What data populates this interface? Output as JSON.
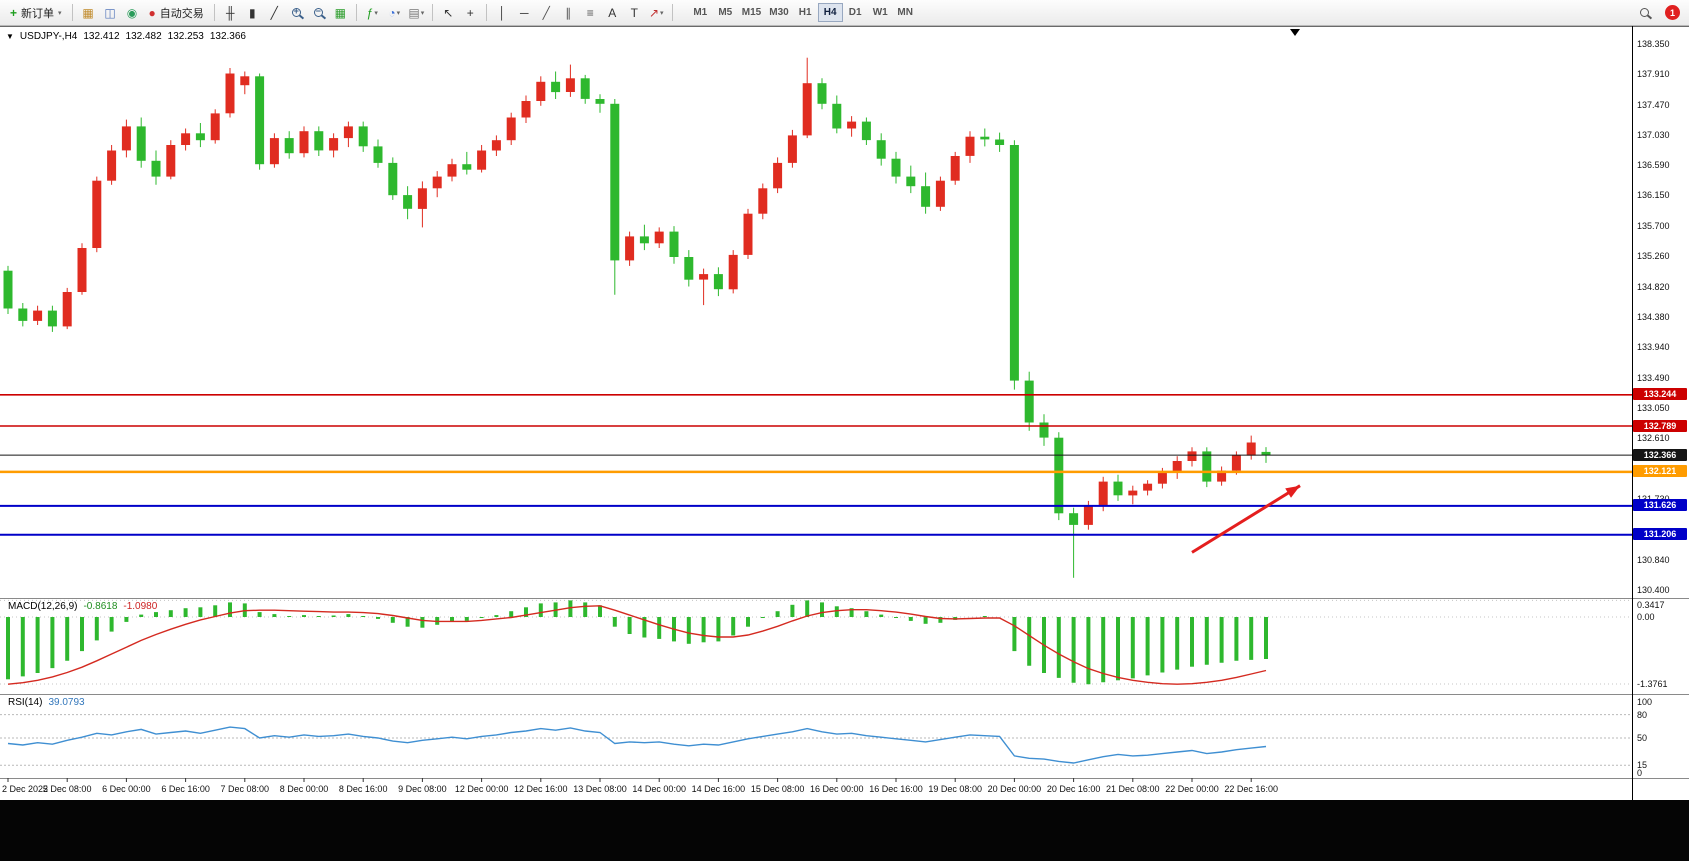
{
  "toolbar": {
    "new_order_label": "新订单",
    "auto_trading_label": "自动交易",
    "timeframes": [
      "M1",
      "M5",
      "M15",
      "M30",
      "H1",
      "H4",
      "D1",
      "W1",
      "MN"
    ],
    "active_timeframe": "H4",
    "notification_count": "1",
    "items": [
      {
        "type": "button",
        "name": "new-order-button",
        "glyph": "+",
        "color": "#1f9e1f",
        "label": "新订单",
        "caret": true
      },
      {
        "type": "sep"
      },
      {
        "type": "icon",
        "name": "new-chart-icon",
        "glyph": "▦",
        "color": "#c08a2a",
        "caret": false
      },
      {
        "type": "icon",
        "name": "profiles-icon",
        "glyph": "◫",
        "color": "#5577bb",
        "caret": false
      },
      {
        "type": "icon",
        "name": "market-watch-icon",
        "glyph": "◉",
        "color": "#2a9c5a",
        "caret": false
      },
      {
        "type": "button",
        "name": "auto-trading-button",
        "glyph": "●",
        "color": "#d03030",
        "label": "自动交易",
        "caret": false
      },
      {
        "type": "sep"
      },
      {
        "type": "icon",
        "name": "ohlc-bars-icon",
        "glyph": "╫",
        "color": "#333",
        "caret": false
      },
      {
        "type": "icon",
        "name": "candlestick-chart-icon",
        "glyph": "▮",
        "color": "#333",
        "caret": false
      },
      {
        "type": "icon",
        "name": "line-chart-icon",
        "glyph": "╱",
        "color": "#333",
        "caret": false
      },
      {
        "type": "zoom",
        "name": "zoom-in-icon",
        "sign": "+"
      },
      {
        "type": "zoom",
        "name": "zoom-out-icon",
        "sign": "−"
      },
      {
        "type": "icon",
        "name": "tile-windows-icon",
        "glyph": "▦",
        "color": "#2a9c2a",
        "caret": false
      },
      {
        "type": "sep"
      },
      {
        "type": "icon",
        "name": "indicators-icon",
        "glyph": "ƒ",
        "color": "#1f9e1f",
        "caret": true
      },
      {
        "type": "icon",
        "name": "periods-icon",
        "glyph": "◔",
        "color": "#3a6fd8",
        "caret": true
      },
      {
        "type": "icon",
        "name": "templates-icon",
        "glyph": "▤",
        "color": "#777",
        "caret": true
      },
      {
        "type": "sep"
      },
      {
        "type": "icon",
        "name": "cursor-icon",
        "glyph": "↖",
        "color": "#333",
        "caret": false
      },
      {
        "type": "icon",
        "name": "crosshair-icon",
        "glyph": "+",
        "color": "#333",
        "caret": false
      },
      {
        "type": "sep"
      },
      {
        "type": "icon",
        "name": "vertical-line-icon",
        "glyph": "│",
        "color": "#333",
        "caret": false
      },
      {
        "type": "icon",
        "name": "horizontal-line-icon",
        "glyph": "─",
        "color": "#333",
        "caret": false
      },
      {
        "type": "icon",
        "name": "trendline-icon",
        "glyph": "╱",
        "color": "#555",
        "caret": false
      },
      {
        "type": "icon",
        "name": "channel-icon",
        "glyph": "∥",
        "color": "#555",
        "caret": false
      },
      {
        "type": "icon",
        "name": "fibonacci-icon",
        "glyph": "≡",
        "color": "#555",
        "caret": false
      },
      {
        "type": "icon",
        "name": "text-icon",
        "glyph": "A",
        "color": "#333",
        "caret": false
      },
      {
        "type": "icon",
        "name": "text-label-icon",
        "glyph": "T",
        "color": "#333",
        "caret": false
      },
      {
        "type": "icon",
        "name": "arrows-icon",
        "glyph": "↗",
        "color": "#c03030",
        "caret": true
      },
      {
        "type": "sep"
      }
    ]
  },
  "chart": {
    "collapse_glyph": "▼",
    "symbol": "USDJPY-,H4",
    "open": "132.412",
    "high": "132.482",
    "low": "132.253",
    "close": "132.366"
  },
  "price_axis": {
    "labels": [
      "138.350",
      "137.910",
      "137.470",
      "137.030",
      "136.590",
      "136.150",
      "135.700",
      "135.260",
      "134.820",
      "134.380",
      "133.940",
      "133.490",
      "133.050",
      "132.610",
      "131.730",
      "130.840",
      "130.400"
    ]
  },
  "macd": {
    "title": "MACD(12,26,9)",
    "value_main": "-0.8618",
    "value_signal": "-1.0980",
    "axis_labels": [
      "0.3417",
      "0.00",
      "-1.3761"
    ]
  },
  "rsi": {
    "title": "RSI(14)",
    "value": "39.0793",
    "axis_labels": [
      "100",
      "80",
      "50",
      "15",
      "0"
    ]
  },
  "chart_data": {
    "type": "candlestick",
    "symbol": "USDJPY-",
    "timeframe": "H4",
    "style": {
      "bull_color": "#e02c20",
      "bear_color": "#2eb82e",
      "background": "#ffffff"
    },
    "candles": [
      [
        135.05,
        135.12,
        134.42,
        134.5
      ],
      [
        134.5,
        134.58,
        134.24,
        134.32
      ],
      [
        134.32,
        134.54,
        134.26,
        134.47
      ],
      [
        134.47,
        134.54,
        134.16,
        134.24
      ],
      [
        134.24,
        134.8,
        134.2,
        134.74
      ],
      [
        134.74,
        135.45,
        134.7,
        135.38
      ],
      [
        135.38,
        136.42,
        135.32,
        136.36
      ],
      [
        136.36,
        136.88,
        136.3,
        136.8
      ],
      [
        136.8,
        137.25,
        136.7,
        137.15
      ],
      [
        137.15,
        137.28,
        136.55,
        136.65
      ],
      [
        136.65,
        136.8,
        136.3,
        136.42
      ],
      [
        136.42,
        136.95,
        136.38,
        136.88
      ],
      [
        136.88,
        137.12,
        136.8,
        137.05
      ],
      [
        137.05,
        137.2,
        136.85,
        136.95
      ],
      [
        136.95,
        137.4,
        136.9,
        137.34
      ],
      [
        137.34,
        138.0,
        137.28,
        137.92
      ],
      [
        137.75,
        137.95,
        137.62,
        137.88
      ],
      [
        137.88,
        137.92,
        136.52,
        136.6
      ],
      [
        136.6,
        137.05,
        136.55,
        136.98
      ],
      [
        136.98,
        137.08,
        136.68,
        136.76
      ],
      [
        136.76,
        137.15,
        136.7,
        137.08
      ],
      [
        137.08,
        137.15,
        136.72,
        136.8
      ],
      [
        136.8,
        137.05,
        136.7,
        136.98
      ],
      [
        136.98,
        137.22,
        136.85,
        137.15
      ],
      [
        137.15,
        137.22,
        136.78,
        136.86
      ],
      [
        136.86,
        136.96,
        136.55,
        136.62
      ],
      [
        136.62,
        136.7,
        136.08,
        136.15
      ],
      [
        136.15,
        136.28,
        135.8,
        135.95
      ],
      [
        135.95,
        136.35,
        135.68,
        136.25
      ],
      [
        136.25,
        136.5,
        136.12,
        136.42
      ],
      [
        136.42,
        136.68,
        136.35,
        136.6
      ],
      [
        136.6,
        136.78,
        136.45,
        136.52
      ],
      [
        136.52,
        136.88,
        136.48,
        136.8
      ],
      [
        136.8,
        137.02,
        136.72,
        136.95
      ],
      [
        136.95,
        137.35,
        136.88,
        137.28
      ],
      [
        137.28,
        137.6,
        137.2,
        137.52
      ],
      [
        137.52,
        137.88,
        137.45,
        137.8
      ],
      [
        137.8,
        137.95,
        137.55,
        137.65
      ],
      [
        137.65,
        138.05,
        137.58,
        137.85
      ],
      [
        137.85,
        137.9,
        137.48,
        137.55
      ],
      [
        137.55,
        137.62,
        137.35,
        137.48
      ],
      [
        137.48,
        137.55,
        134.7,
        135.2
      ],
      [
        135.2,
        135.62,
        135.12,
        135.55
      ],
      [
        135.55,
        135.72,
        135.35,
        135.45
      ],
      [
        135.45,
        135.68,
        135.38,
        135.62
      ],
      [
        135.62,
        135.7,
        135.15,
        135.25
      ],
      [
        135.25,
        135.35,
        134.82,
        134.92
      ],
      [
        134.92,
        135.08,
        134.55,
        135.0
      ],
      [
        135.0,
        135.1,
        134.68,
        134.78
      ],
      [
        134.78,
        135.35,
        134.72,
        135.28
      ],
      [
        135.28,
        135.95,
        135.22,
        135.88
      ],
      [
        135.88,
        136.32,
        135.8,
        136.25
      ],
      [
        136.25,
        136.7,
        136.18,
        136.62
      ],
      [
        136.62,
        137.1,
        136.55,
        137.02
      ],
      [
        137.02,
        138.15,
        136.98,
        137.78
      ],
      [
        137.78,
        137.85,
        137.4,
        137.48
      ],
      [
        137.48,
        137.6,
        137.05,
        137.12
      ],
      [
        137.12,
        137.3,
        137.0,
        137.22
      ],
      [
        137.22,
        137.28,
        136.88,
        136.95
      ],
      [
        136.95,
        137.05,
        136.58,
        136.68
      ],
      [
        136.68,
        136.78,
        136.32,
        136.42
      ],
      [
        136.42,
        136.58,
        136.18,
        136.28
      ],
      [
        136.28,
        136.48,
        135.88,
        135.98
      ],
      [
        135.98,
        136.42,
        135.92,
        136.36
      ],
      [
        136.36,
        136.78,
        136.3,
        136.72
      ],
      [
        136.72,
        137.08,
        136.62,
        137.0
      ],
      [
        137.0,
        137.12,
        136.86,
        136.96
      ],
      [
        136.96,
        137.06,
        136.78,
        136.88
      ],
      [
        136.88,
        136.95,
        133.32,
        133.45
      ],
      [
        133.45,
        133.58,
        132.72,
        132.84
      ],
      [
        132.84,
        132.96,
        132.5,
        132.62
      ],
      [
        132.62,
        132.7,
        131.42,
        131.52
      ],
      [
        131.52,
        131.6,
        130.58,
        131.35
      ],
      [
        131.35,
        131.7,
        131.28,
        131.62
      ],
      [
        131.62,
        132.05,
        131.55,
        131.98
      ],
      [
        131.98,
        132.08,
        131.7,
        131.78
      ],
      [
        131.78,
        131.92,
        131.65,
        131.85
      ],
      [
        131.85,
        132.0,
        131.78,
        131.95
      ],
      [
        131.95,
        132.18,
        131.88,
        132.12
      ],
      [
        132.12,
        132.35,
        132.02,
        132.28
      ],
      [
        132.28,
        132.48,
        132.2,
        132.42
      ],
      [
        132.42,
        132.48,
        131.9,
        131.98
      ],
      [
        131.98,
        132.2,
        131.92,
        132.14
      ],
      [
        132.14,
        132.42,
        132.08,
        132.36
      ],
      [
        132.36,
        132.65,
        132.3,
        132.55
      ],
      [
        132.412,
        132.482,
        132.253,
        132.366
      ]
    ],
    "hlines": [
      {
        "name": "resistance-line-upper",
        "price": 133.244,
        "label": "133.244",
        "color": "#cc0000",
        "width": 1.6,
        "tag": true
      },
      {
        "name": "resistance-line-lower",
        "price": 132.789,
        "label": "132.789",
        "color": "#cc0000",
        "width": 1.6,
        "tag": true
      },
      {
        "name": "current-price-line",
        "price": 132.366,
        "label": "132.366",
        "color": "#151515",
        "width": 1,
        "tag": true
      },
      {
        "name": "pivot-line",
        "price": 132.121,
        "label": "132.121",
        "color": "#ff9c00",
        "width": 2.5,
        "tag": true
      },
      {
        "name": "support-line-upper",
        "price": 131.626,
        "label": "131.626",
        "color": "#0000c8",
        "width": 2,
        "tag": true
      },
      {
        "name": "support-line-lower",
        "price": 131.206,
        "label": "131.206",
        "color": "#0000c8",
        "width": 2,
        "tag": true
      }
    ],
    "macd": {
      "histogram_color": "#2eb82e",
      "signal_color": "#d42a20",
      "gridlines": [
        0.3417,
        0,
        -1.3761
      ],
      "histogram": [
        -1.28,
        -1.22,
        -1.15,
        -1.05,
        -0.9,
        -0.7,
        -0.48,
        -0.3,
        -0.1,
        0.05,
        0.1,
        0.14,
        0.18,
        0.2,
        0.24,
        0.3,
        0.28,
        0.1,
        0.06,
        0.02,
        0.04,
        0.02,
        0.03,
        0.06,
        0.02,
        -0.04,
        -0.12,
        -0.2,
        -0.22,
        -0.16,
        -0.1,
        -0.08,
        -0.02,
        0.04,
        0.12,
        0.2,
        0.28,
        0.3,
        0.34,
        0.3,
        0.24,
        -0.2,
        -0.35,
        -0.42,
        -0.45,
        -0.5,
        -0.55,
        -0.52,
        -0.5,
        -0.38,
        -0.2,
        -0.02,
        0.12,
        0.25,
        0.34,
        0.3,
        0.22,
        0.18,
        0.12,
        0.05,
        -0.02,
        -0.08,
        -0.14,
        -0.12,
        -0.06,
        0.0,
        0.02,
        0.0,
        -0.7,
        -1.0,
        -1.15,
        -1.25,
        -1.35,
        -1.38,
        -1.34,
        -1.3,
        -1.26,
        -1.2,
        -1.14,
        -1.08,
        -1.02,
        -0.98,
        -0.94,
        -0.9,
        -0.88,
        -0.862
      ],
      "signal": [
        -1.38,
        -1.35,
        -1.3,
        -1.23,
        -1.14,
        -1.03,
        -0.9,
        -0.76,
        -0.62,
        -0.48,
        -0.36,
        -0.25,
        -0.15,
        -0.06,
        0.01,
        0.08,
        0.13,
        0.14,
        0.14,
        0.13,
        0.12,
        0.11,
        0.1,
        0.1,
        0.09,
        0.07,
        0.03,
        -0.02,
        -0.07,
        -0.09,
        -0.09,
        -0.09,
        -0.07,
        -0.04,
        -0.01,
        0.04,
        0.09,
        0.14,
        0.19,
        0.22,
        0.23,
        0.14,
        0.04,
        -0.06,
        -0.16,
        -0.25,
        -0.33,
        -0.38,
        -0.41,
        -0.41,
        -0.37,
        -0.29,
        -0.19,
        -0.08,
        0.02,
        0.09,
        0.13,
        0.15,
        0.15,
        0.13,
        0.1,
        0.06,
        0.01,
        -0.03,
        -0.04,
        -0.03,
        -0.02,
        -0.02,
        -0.18,
        -0.38,
        -0.58,
        -0.76,
        -0.92,
        -1.06,
        -1.16,
        -1.24,
        -1.3,
        -1.34,
        -1.37,
        -1.38,
        -1.37,
        -1.34,
        -1.3,
        -1.24,
        -1.17,
        -1.098
      ]
    },
    "rsi": {
      "color": "#3f8fd2",
      "levels": [
        80,
        50,
        15
      ],
      "values": [
        43,
        41,
        44,
        42,
        47,
        51,
        56,
        54,
        58,
        61,
        55,
        57,
        59,
        56,
        60,
        64,
        62,
        50,
        53,
        51,
        54,
        52,
        53,
        55,
        52,
        50,
        46,
        44,
        47,
        49,
        51,
        49,
        52,
        54,
        57,
        59,
        62,
        60,
        63,
        59,
        57,
        43,
        45,
        44,
        45,
        42,
        40,
        42,
        41,
        45,
        49,
        52,
        55,
        58,
        62,
        58,
        55,
        56,
        53,
        51,
        49,
        47,
        45,
        48,
        51,
        54,
        53,
        52,
        27,
        24,
        23,
        20,
        18,
        22,
        26,
        29,
        27,
        28,
        30,
        32,
        34,
        30,
        32,
        35,
        37,
        39.08
      ]
    },
    "time_labels": [
      "2 Dec 2022",
      "5 Dec 08:00",
      "6 Dec 00:00",
      "6 Dec 16:00",
      "7 Dec 08:00",
      "8 Dec 00:00",
      "8 Dec 16:00",
      "9 Dec 08:00",
      "12 Dec 00:00",
      "12 Dec 16:00",
      "13 Dec 08:00",
      "14 Dec 00:00",
      "14 Dec 16:00",
      "15 Dec 08:00",
      "16 Dec 00:00",
      "16 Dec 16:00",
      "19 Dec 08:00",
      "20 Dec 00:00",
      "20 Dec 16:00",
      "21 Dec 08:00",
      "22 Dec 00:00",
      "22 Dec 16:00"
    ],
    "annotations": [
      {
        "type": "arrow",
        "color": "#e41e1e",
        "from": {
          "bar": 80,
          "price": 130.95
        },
        "to": {
          "bar": 87.3,
          "price": 131.92
        }
      }
    ]
  }
}
